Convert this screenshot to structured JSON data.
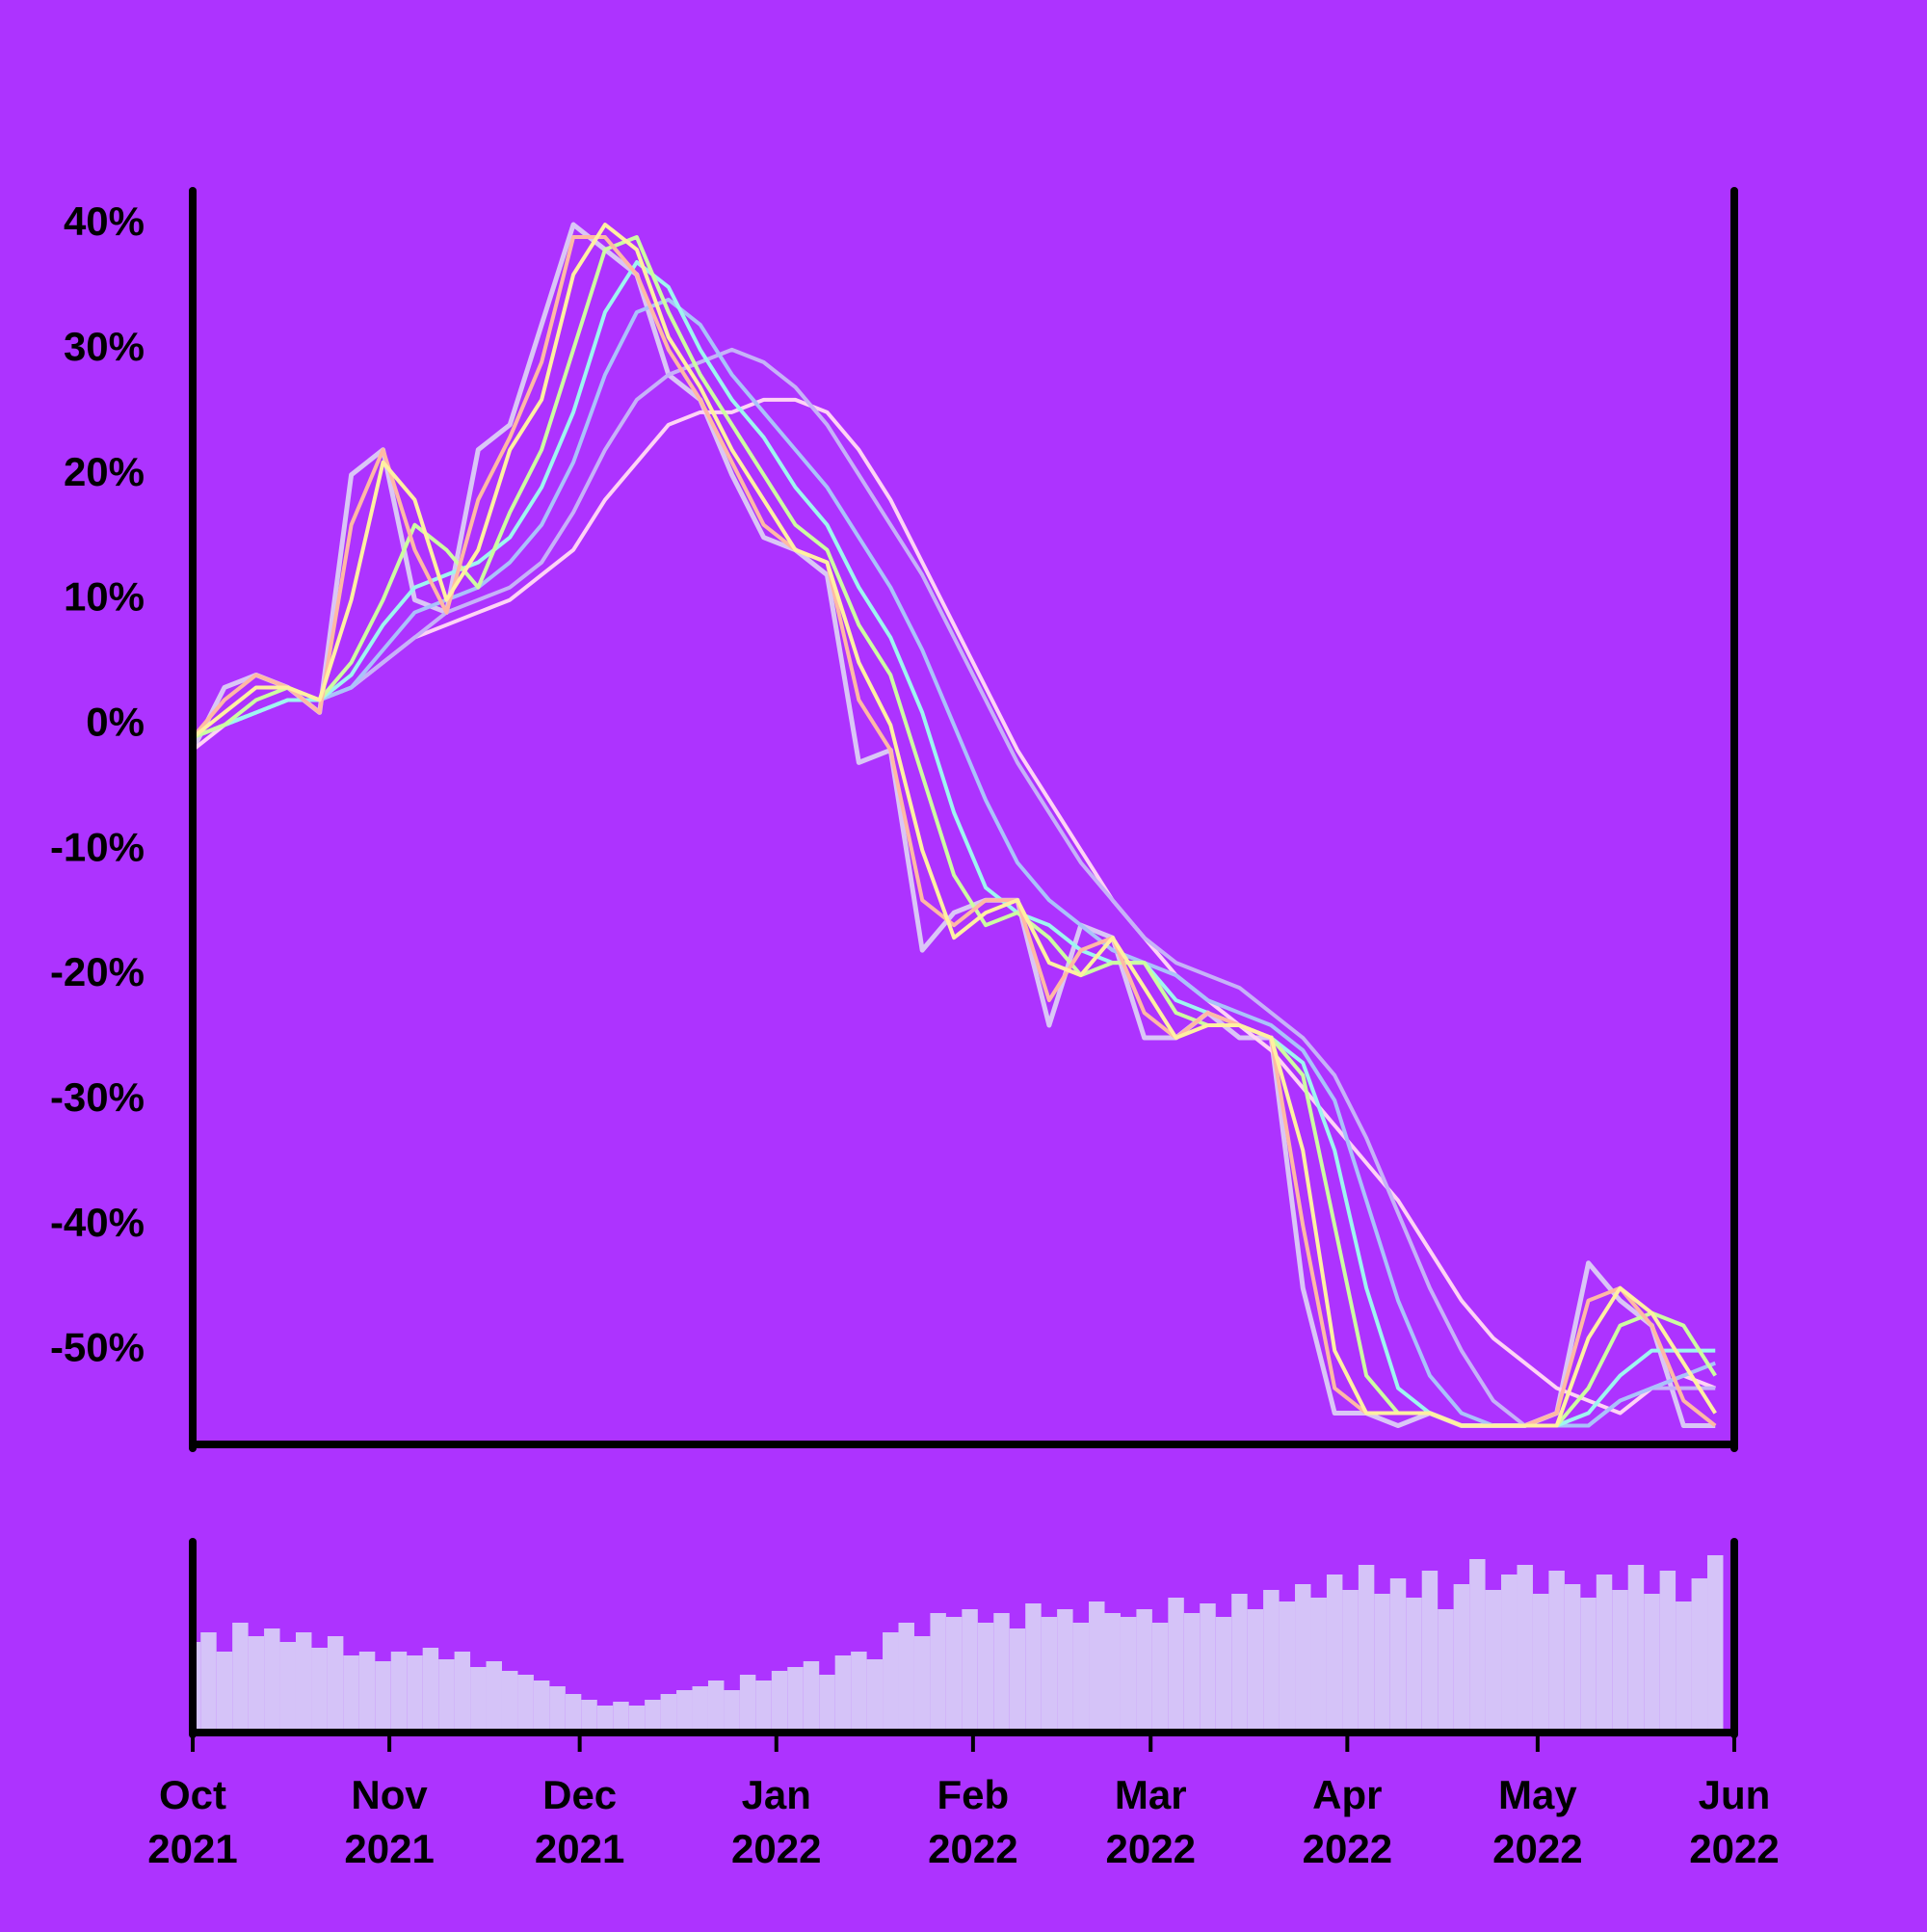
{
  "chart_data": [
    {
      "type": "line",
      "x": [
        0,
        5,
        10,
        15,
        20,
        25,
        30,
        35,
        40,
        45,
        50,
        55,
        60,
        65,
        70,
        75,
        80,
        85,
        90,
        95,
        100,
        105,
        110,
        115,
        120,
        125,
        130,
        135,
        140,
        145,
        150,
        155,
        160,
        165,
        170,
        175,
        180,
        185,
        190,
        195,
        200,
        205,
        210,
        215,
        220,
        225,
        230,
        235,
        240
      ],
      "xlim": [
        0,
        243
      ],
      "ylim": [
        -57.5,
        42.7
      ],
      "yticks": [
        {
          "value": -50,
          "label": "-50%"
        },
        {
          "value": -40,
          "label": "-40%"
        },
        {
          "value": -30,
          "label": "-30%"
        },
        {
          "value": -20,
          "label": "-20%"
        },
        {
          "value": -10,
          "label": "-10%"
        },
        {
          "value": 0,
          "label": "0%"
        },
        {
          "value": 10,
          "label": "10%"
        },
        {
          "value": 20,
          "label": "20%"
        },
        {
          "value": 30,
          "label": "30%"
        },
        {
          "value": 40,
          "label": "40%"
        }
      ],
      "series": [
        {
          "color": "#dac6f6",
          "values": [
            -2,
            3,
            4,
            3,
            1,
            20,
            22,
            10,
            9,
            22,
            24,
            32,
            40,
            38,
            36,
            28,
            26,
            20,
            15,
            14,
            12,
            -3,
            -2,
            -18,
            -15,
            -14,
            -14,
            -24,
            -16,
            -17,
            -25,
            -25,
            -23,
            -25,
            -25,
            -45,
            -55,
            -55,
            -56,
            -55,
            -56,
            -56,
            -56,
            -55,
            -43,
            -46,
            -48,
            -56,
            -56
          ]
        },
        {
          "color": "#ffd3f5",
          "values": [
            -2,
            0,
            1,
            2,
            2,
            3,
            5,
            7,
            8,
            9,
            10,
            12,
            14,
            18,
            21,
            24,
            25,
            25,
            26,
            26,
            25,
            22,
            18,
            13,
            8,
            3,
            -2,
            -6,
            -10,
            -14,
            -17,
            -20,
            -22,
            -24,
            -26,
            -29,
            -32,
            -35,
            -38,
            -42,
            -46,
            -49,
            -51,
            -53,
            -54,
            -55,
            -53,
            -52,
            -53
          ]
        },
        {
          "color": "#c6b2f8",
          "values": [
            -1,
            0,
            1,
            2,
            2,
            3,
            5,
            7,
            9,
            10,
            11,
            13,
            17,
            22,
            26,
            28,
            29,
            30,
            29,
            27,
            24,
            20,
            16,
            12,
            7,
            2,
            -3,
            -7,
            -11,
            -14,
            -17,
            -19,
            -20,
            -21,
            -23,
            -25,
            -28,
            -33,
            -39,
            -45,
            -50,
            -54,
            -56,
            -56,
            -56,
            -54,
            -53,
            -53,
            -53
          ]
        },
        {
          "color": "#aac2fa",
          "values": [
            -1,
            0,
            1,
            2,
            2,
            3,
            6,
            9,
            10,
            11,
            13,
            16,
            21,
            28,
            33,
            34,
            32,
            28,
            25,
            22,
            19,
            15,
            11,
            6,
            0,
            -6,
            -11,
            -14,
            -16,
            -18,
            -19,
            -20,
            -22,
            -23,
            -24,
            -26,
            -30,
            -38,
            -46,
            -52,
            -55,
            -56,
            -56,
            -56,
            -56,
            -54,
            -53,
            -52,
            -51
          ]
        },
        {
          "color": "#9ef5f0",
          "values": [
            -1,
            0,
            1,
            2,
            2,
            4,
            8,
            11,
            12,
            13,
            15,
            19,
            25,
            33,
            37,
            35,
            30,
            26,
            23,
            19,
            16,
            11,
            7,
            1,
            -7,
            -13,
            -15,
            -16,
            -18,
            -19,
            -19,
            -22,
            -23,
            -24,
            -25,
            -27,
            -34,
            -45,
            -53,
            -55,
            -56,
            -56,
            -56,
            -56,
            -55,
            -52,
            -50,
            -50,
            -50
          ]
        },
        {
          "color": "#cdfca2",
          "values": [
            -1,
            0,
            2,
            3,
            2,
            5,
            10,
            16,
            14,
            11,
            17,
            22,
            30,
            38,
            39,
            33,
            28,
            24,
            20,
            16,
            14,
            8,
            4,
            -4,
            -12,
            -16,
            -15,
            -17,
            -20,
            -19,
            -19,
            -23,
            -24,
            -24,
            -25,
            -28,
            -40,
            -52,
            -55,
            -55,
            -56,
            -56,
            -56,
            -56,
            -53,
            -48,
            -47,
            -48,
            -52
          ]
        },
        {
          "color": "#ffb9a5",
          "values": [
            -1,
            2,
            4,
            3,
            1,
            16,
            22,
            14,
            9,
            18,
            23,
            29,
            39,
            39,
            36,
            30,
            26,
            21,
            16,
            14,
            13,
            2,
            -2,
            -14,
            -16,
            -14,
            -14,
            -22,
            -18,
            -17,
            -23,
            -25,
            -23,
            -24,
            -25,
            -40,
            -53,
            -55,
            -55,
            -55,
            -56,
            -56,
            -56,
            -55,
            -46,
            -45,
            -48,
            -54,
            -56
          ]
        },
        {
          "color": "#fff0a2",
          "values": [
            -1,
            1,
            3,
            3,
            2,
            10,
            21,
            18,
            10,
            14,
            22,
            26,
            36,
            40,
            38,
            31,
            27,
            22,
            18,
            14,
            13,
            5,
            0,
            -10,
            -17,
            -15,
            -14,
            -19,
            -20,
            -17,
            -21,
            -25,
            -24,
            -24,
            -25,
            -34,
            -50,
            -55,
            -55,
            -55,
            -56,
            -56,
            -56,
            -56,
            -49,
            -45,
            -47,
            -51,
            -55
          ]
        }
      ]
    },
    {
      "type": "bar",
      "color": "#d5c3f8",
      "x": [
        0,
        2.5,
        5,
        7.5,
        10,
        12.5,
        15,
        17.5,
        20,
        22.5,
        25,
        27.5,
        30,
        32.5,
        35,
        37.5,
        40,
        42.5,
        45,
        47.5,
        50,
        52.5,
        55,
        57.5,
        60,
        62.5,
        65,
        67.5,
        70,
        72.5,
        75,
        77.5,
        80,
        82.5,
        85,
        87.5,
        90,
        92.5,
        95,
        97.5,
        100,
        102.5,
        105,
        107.5,
        110,
        112.5,
        115,
        117.5,
        120,
        122.5,
        125,
        127.5,
        130,
        132.5,
        135,
        137.5,
        140,
        142.5,
        145,
        147.5,
        150,
        152.5,
        155,
        157.5,
        160,
        162.5,
        165,
        167.5,
        170,
        172.5,
        175,
        177.5,
        180,
        182.5,
        185,
        187.5,
        190,
        192.5,
        195,
        197.5,
        200,
        202.5,
        205,
        207.5,
        210,
        212.5,
        215,
        217.5,
        220,
        222.5,
        225,
        227.5,
        230,
        232.5,
        235,
        237.5,
        240
      ],
      "xlim": [
        0,
        243
      ],
      "xticks": [
        {
          "value": 0,
          "label": "Oct 2021"
        },
        {
          "value": 31,
          "label": "Nov 2021"
        },
        {
          "value": 61,
          "label": "Dec 2021"
        },
        {
          "value": 92,
          "label": "Jan 2022"
        },
        {
          "value": 123,
          "label": "Feb 2022"
        },
        {
          "value": 151,
          "label": "Mar 2022"
        },
        {
          "value": 182,
          "label": "Apr 2022"
        },
        {
          "value": 212,
          "label": "May 2022"
        },
        {
          "value": 243,
          "label": "Jun 2022"
        }
      ],
      "values": [
        45,
        50,
        40,
        55,
        48,
        52,
        45,
        50,
        42,
        48,
        38,
        40,
        35,
        40,
        38,
        42,
        36,
        40,
        32,
        35,
        30,
        28,
        25,
        22,
        18,
        15,
        12,
        14,
        12,
        15,
        18,
        20,
        22,
        25,
        20,
        28,
        25,
        30,
        32,
        35,
        28,
        38,
        40,
        36,
        50,
        55,
        48,
        60,
        58,
        62,
        55,
        60,
        52,
        65,
        58,
        62,
        55,
        66,
        60,
        58,
        62,
        55,
        68,
        60,
        65,
        58,
        70,
        62,
        72,
        66,
        75,
        68,
        80,
        72,
        85,
        70,
        78,
        68,
        82,
        62,
        75,
        88,
        72,
        80,
        85,
        70,
        82,
        75,
        68,
        80,
        72,
        85,
        70,
        82,
        66,
        78,
        90
      ]
    }
  ]
}
